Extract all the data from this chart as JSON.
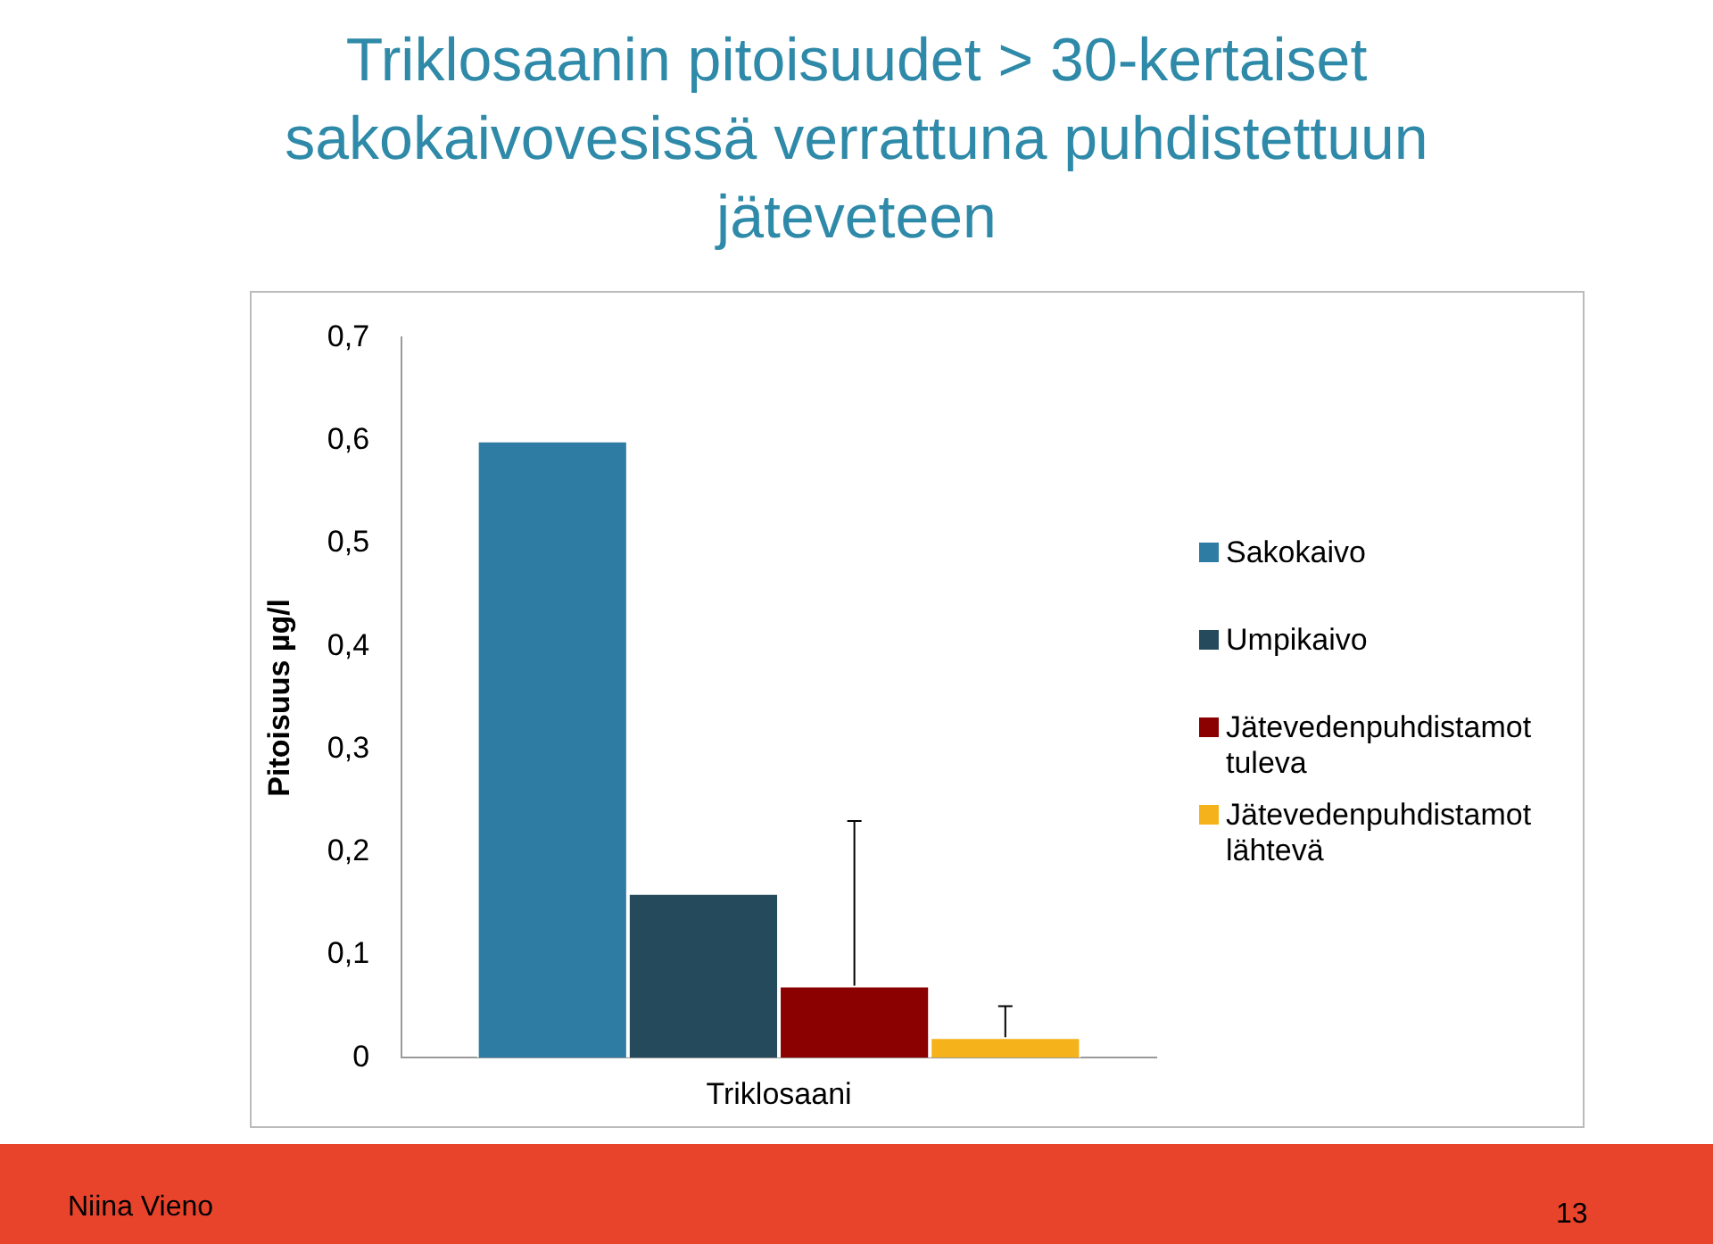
{
  "chart_data": {
    "type": "bar",
    "title": "Triklosaanin pitoisuudet > 30-kertaiset sakokaivovesissä verrattuna puhdistettuun jäteveteen",
    "ylabel": "Pitoisuus µg/l",
    "categories": [
      "Triklosaani"
    ],
    "series": [
      {
        "name": "Sakokaivo",
        "color": "#2e7ca3",
        "values": [
          0.6
        ]
      },
      {
        "name": "Umpikaivo",
        "color": "#244a5b",
        "values": [
          0.16
        ]
      },
      {
        "name": "Jätevedenpuhdistamot tuleva",
        "color": "#8b0000",
        "values": [
          0.07
        ],
        "errors": [
          [
            0.07,
            0.23
          ]
        ]
      },
      {
        "name": "Jätevedenpuhdistamot lähtevä",
        "color": "#f5b21a",
        "values": [
          0.02
        ],
        "errors": [
          [
            0.02,
            0.05
          ]
        ]
      }
    ],
    "ylim": [
      0,
      0.7
    ],
    "yticks": [
      0,
      {
        "value": 0.1,
        "label": "0,1"
      },
      {
        "value": 0.2,
        "label": "0,2"
      },
      {
        "value": 0.3,
        "label": "0,3"
      },
      {
        "value": 0.4,
        "label": "0,4"
      },
      {
        "value": 0.5,
        "label": "0,5"
      },
      {
        "value": 0.6,
        "label": "0,6"
      },
      {
        "value": 0.7,
        "label": "0,7"
      }
    ],
    "grid": false,
    "legend": "right",
    "annotations": [
      "Niina Vieno",
      "13"
    ]
  }
}
